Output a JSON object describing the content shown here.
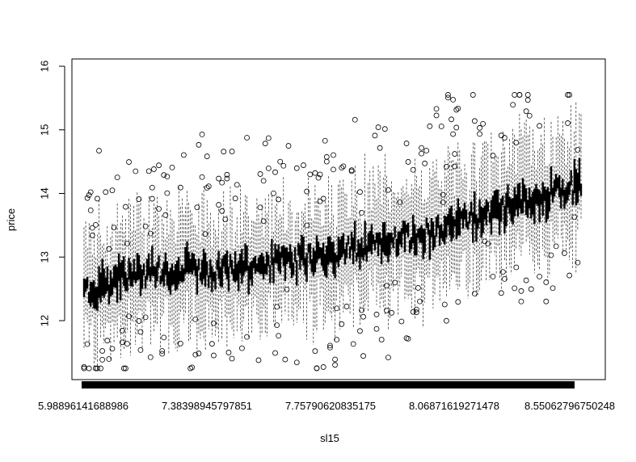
{
  "chart_data": {
    "type": "boxplot",
    "xlabel": "sl15",
    "ylabel": "price",
    "ylim": [
      11.2,
      16.0
    ],
    "yticks": [
      12,
      13,
      14,
      15,
      16
    ],
    "xtick_labels": [
      "5.98896141688986",
      "7.38398945797851",
      "7.75790620835175",
      "8.06871619271478",
      "8.55062796750248"
    ],
    "grid": false,
    "legend": "none",
    "n_groups": 300,
    "trend": {
      "description_points": [
        {
          "group_frac": 0.0,
          "median": 12.45
        },
        {
          "group_frac": 0.1,
          "median": 12.75
        },
        {
          "group_frac": 0.3,
          "median": 12.8
        },
        {
          "group_frac": 0.5,
          "median": 13.05
        },
        {
          "group_frac": 0.7,
          "median": 13.4
        },
        {
          "group_frac": 0.85,
          "median": 13.8
        },
        {
          "group_frac": 1.0,
          "median": 14.15
        }
      ]
    },
    "outlier_range": [
      11.25,
      15.55
    ],
    "whisker_max": 15.85
  }
}
